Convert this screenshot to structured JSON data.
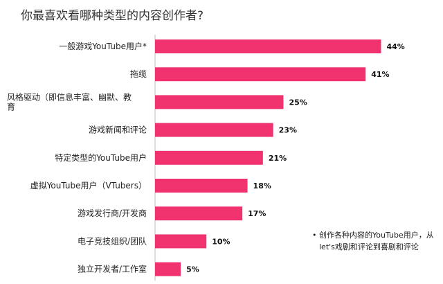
{
  "chart_data": {
    "type": "bar",
    "orientation": "horizontal",
    "title": "你最喜欢看哪种类型的内容创作者?",
    "categories": [
      [
        "一般游戏YouTube用户*"
      ],
      [
        "拖缆"
      ],
      [
        "风格驱动（即信息丰富、幽默、教",
        "育"
      ],
      [
        "游戏新闻和评论"
      ],
      [
        "特定类型的YouTube用户"
      ],
      [
        "虚拟YouTube用户（VTubers）"
      ],
      [
        "游戏发行商/开发商"
      ],
      [
        "电子竞技组织/团队"
      ],
      [
        "独立开发者/工作室"
      ]
    ],
    "values": [
      44,
      41,
      25,
      23,
      21,
      18,
      17,
      10,
      5
    ],
    "value_labels": [
      "44%",
      "41%",
      "25%",
      "23%",
      "21%",
      "18%",
      "17%",
      "10%",
      "5%"
    ],
    "xlim": [
      0,
      50
    ],
    "bar_color": "#f0336f",
    "grid": false
  },
  "note": {
    "bullet": "•",
    "text": "创作各种内容的YouTube用户，从let's戏剧和评论到喜剧和评论"
  }
}
